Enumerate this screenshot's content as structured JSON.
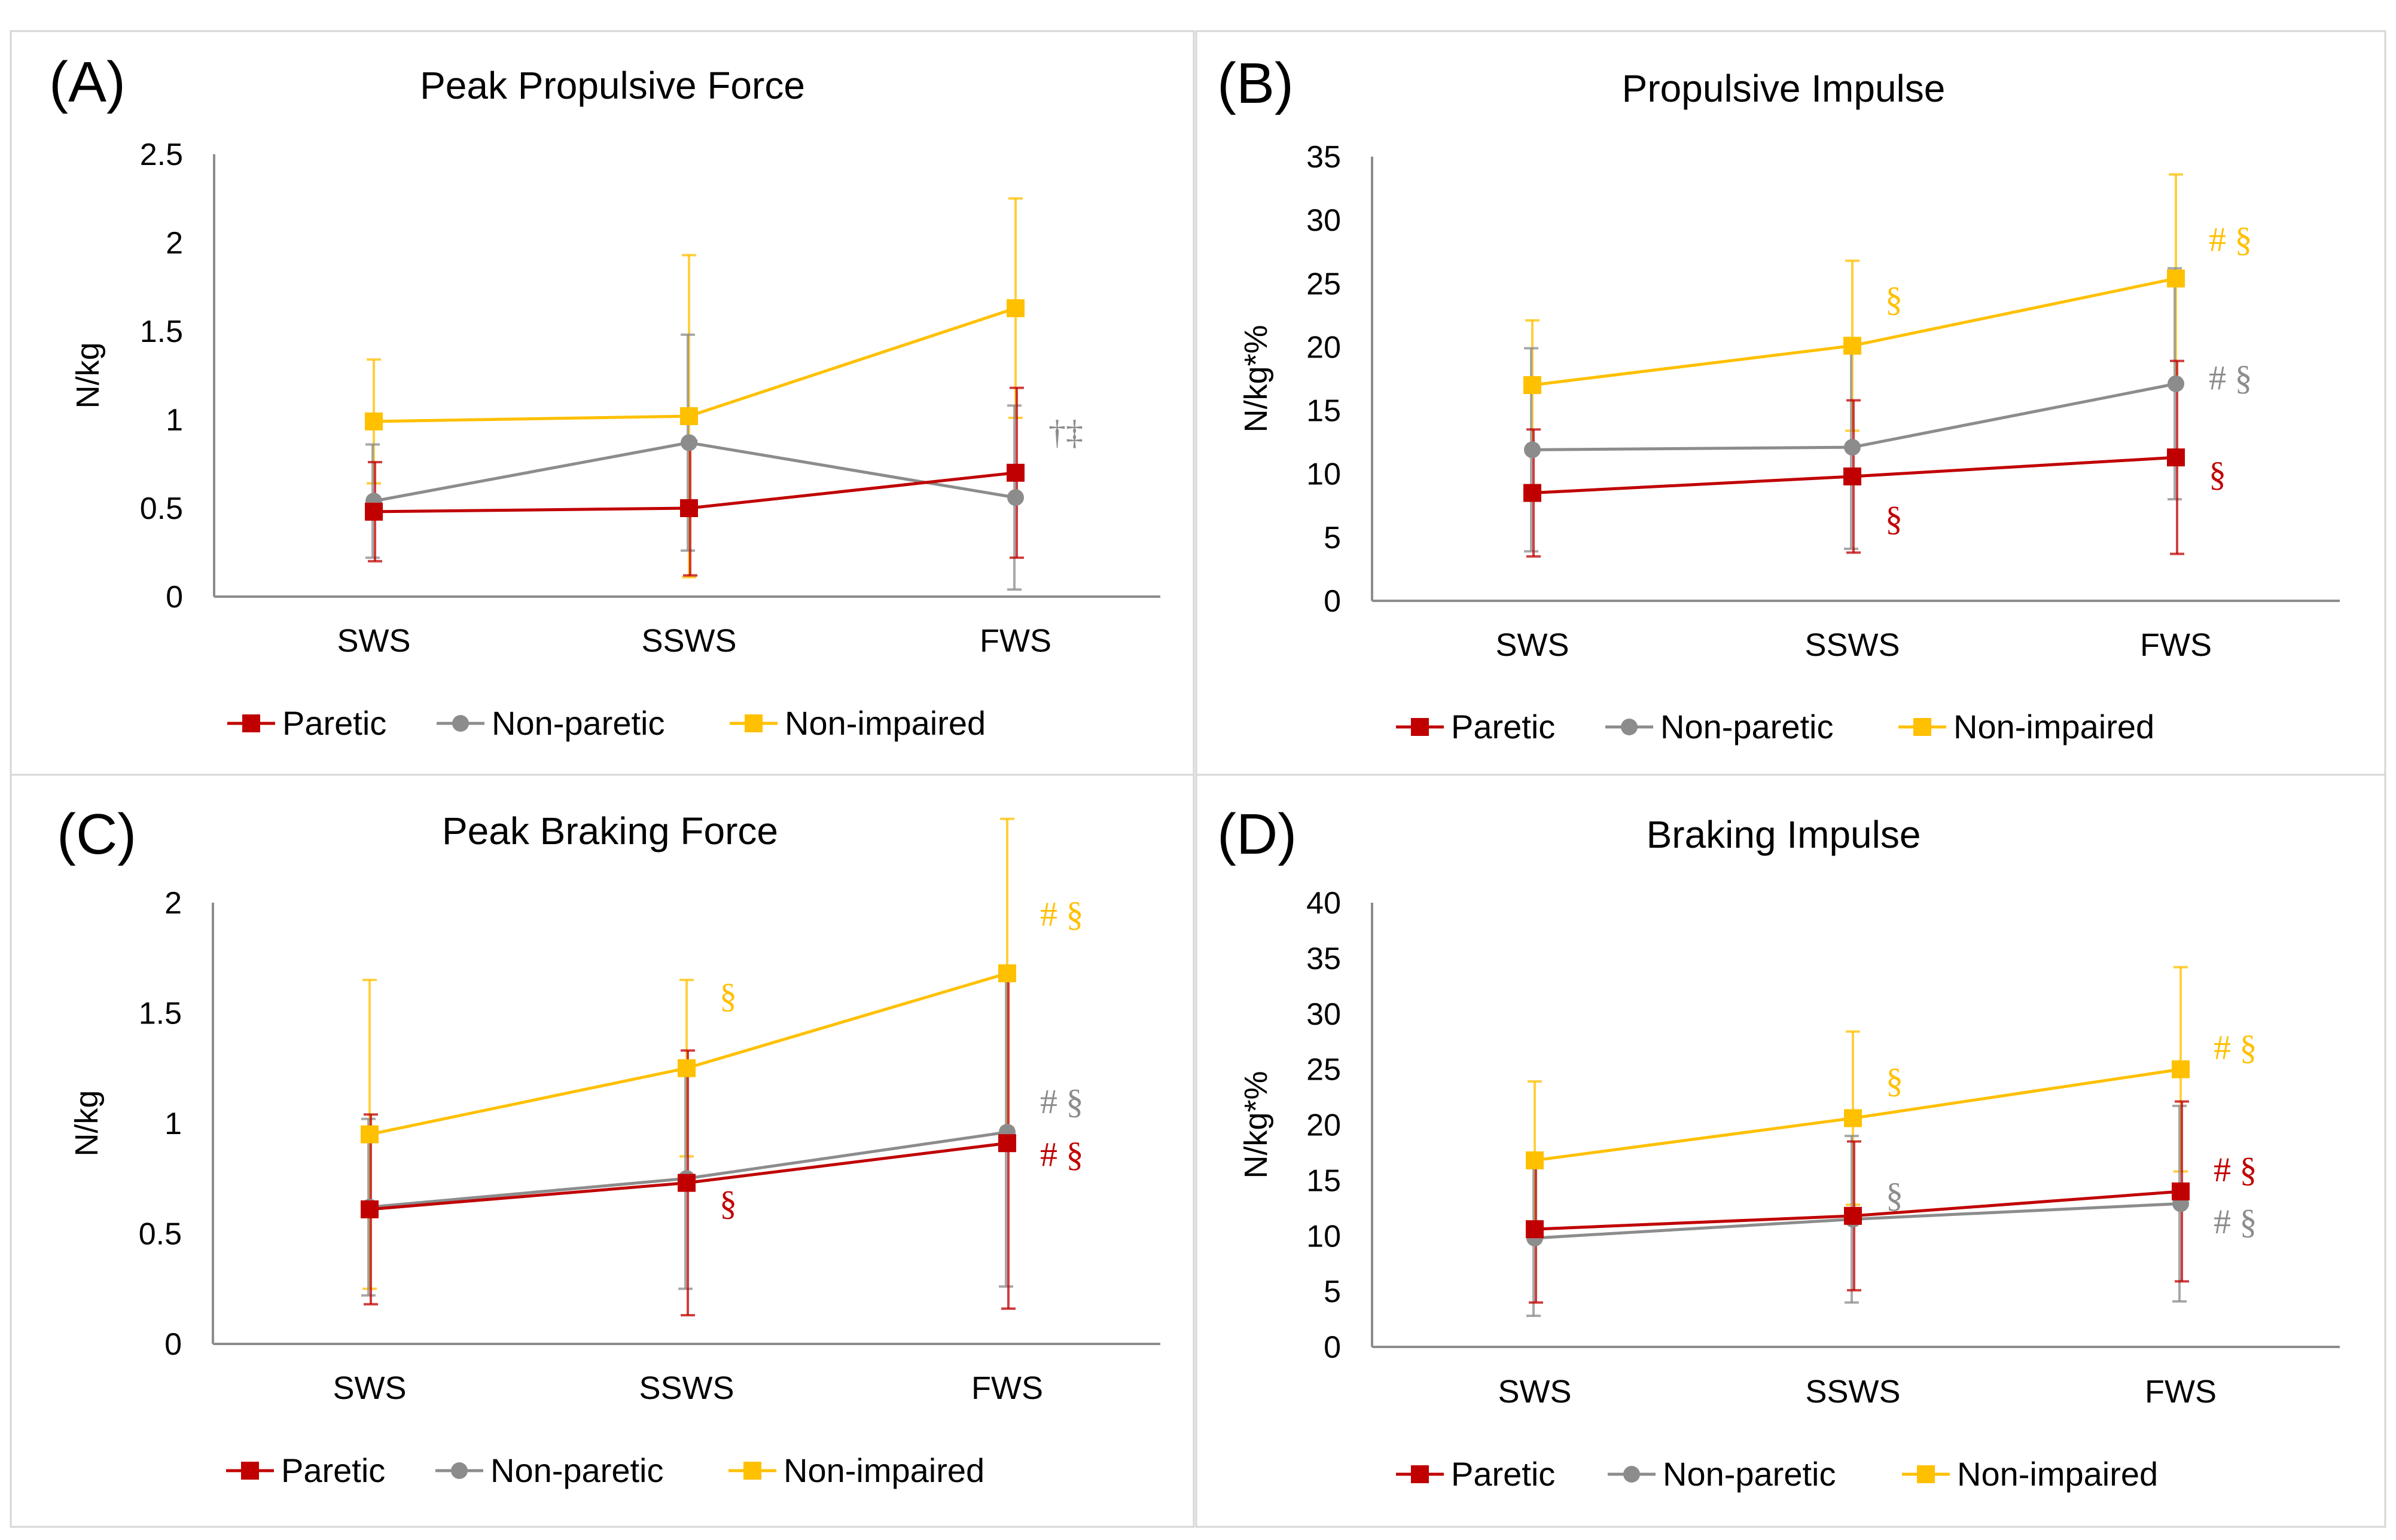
{
  "colors": {
    "paretic": "#c00000",
    "non_paretic": "#8c8c8c",
    "non_impaired": "#ffc000"
  },
  "legend": [
    {
      "name": "Paretic",
      "marker": "square",
      "color": "#c00000"
    },
    {
      "name": "Non-paretic",
      "marker": "circle",
      "color": "#8c8c8c"
    },
    {
      "name": "Non-impaired",
      "marker": "square",
      "color": "#ffc000"
    }
  ],
  "chart_data": [
    {
      "panel": "(A)",
      "type": "line",
      "title": "Peak Propulsive Force",
      "xlabel": "",
      "ylabel": "N/kg",
      "categories": [
        "SWS",
        "SSWS",
        "FWS"
      ],
      "ylim": [
        0,
        2.5
      ],
      "yticks": [
        "0",
        "0.5",
        "1",
        "1.5",
        "2",
        "2.5"
      ],
      "ytick_values": [
        0,
        0.5,
        1,
        1.5,
        2,
        2.5
      ],
      "series": [
        {
          "name": "Paretic",
          "values": [
            0.48,
            0.5,
            0.7
          ],
          "err": [
            0.28,
            0.38,
            0.48
          ]
        },
        {
          "name": "Non-paretic",
          "values": [
            0.54,
            0.87,
            0.56
          ],
          "err": [
            0.32,
            0.61,
            0.52
          ]
        },
        {
          "name": "Non-impaired",
          "values": [
            0.99,
            1.02,
            1.63
          ],
          "err": [
            0.35,
            0.91,
            0.62
          ]
        }
      ],
      "annotations": [
        {
          "text": "†‡",
          "category": "FWS",
          "y": 0.93,
          "series": "Non-paretic"
        }
      ]
    },
    {
      "panel": "(B)",
      "type": "line",
      "title": "Propulsive Impulse",
      "xlabel": "",
      "ylabel": "N/kg*%",
      "categories": [
        "SWS",
        "SSWS",
        "FWS"
      ],
      "ylim": [
        0,
        35
      ],
      "yticks": [
        "0",
        "5",
        "10",
        "15",
        "20",
        "25",
        "30",
        "35"
      ],
      "ytick_values": [
        0,
        5,
        10,
        15,
        20,
        25,
        30,
        35
      ],
      "series": [
        {
          "name": "Paretic",
          "values": [
            8.5,
            9.8,
            11.3
          ],
          "err": [
            5.0,
            6.0,
            7.6
          ]
        },
        {
          "name": "Non-paretic",
          "values": [
            11.9,
            12.1,
            17.1
          ],
          "err": [
            8.0,
            8.0,
            9.1
          ]
        },
        {
          "name": "Non-impaired",
          "values": [
            17.0,
            20.1,
            25.4
          ],
          "err": [
            5.1,
            6.7,
            8.2
          ]
        }
      ],
      "annotations": [
        {
          "text": "§",
          "category": "SSWS",
          "y": 23.8,
          "series": "Non-impaired"
        },
        {
          "text": "# §",
          "category": "FWS",
          "y": 28.5,
          "series": "Non-impaired"
        },
        {
          "text": "# §",
          "category": "FWS",
          "y": 17.6,
          "series": "Non-paretic"
        },
        {
          "text": "§",
          "category": "SSWS",
          "y": 6.5,
          "series": "Paretic"
        },
        {
          "text": "§",
          "category": "FWS",
          "y": 10.0,
          "series": "Paretic"
        }
      ]
    },
    {
      "panel": "(C)",
      "type": "line",
      "title": "Peak Braking Force",
      "xlabel": "",
      "ylabel": "N/kg",
      "categories": [
        "SWS",
        "SSWS",
        "FWS"
      ],
      "ylim": [
        0,
        2
      ],
      "yticks": [
        "0",
        "0.5",
        "1",
        "1.5",
        "2"
      ],
      "ytick_values": [
        0,
        0.5,
        1,
        1.5,
        2
      ],
      "series": [
        {
          "name": "Paretic",
          "values": [
            0.61,
            0.73,
            0.91
          ],
          "err": [
            0.43,
            0.6,
            0.75
          ]
        },
        {
          "name": "Non-paretic",
          "values": [
            0.62,
            0.75,
            0.96
          ],
          "err": [
            0.4,
            0.5,
            0.7
          ]
        },
        {
          "name": "Non-impaired",
          "values": [
            0.95,
            1.25,
            1.68
          ],
          "err": [
            0.7,
            0.4,
            0.7
          ]
        }
      ],
      "annotations": [
        {
          "text": "§",
          "category": "SSWS",
          "y": 1.58,
          "series": "Non-impaired"
        },
        {
          "text": "# §",
          "category": "FWS",
          "y": 1.95,
          "series": "Non-impaired"
        },
        {
          "text": "# §",
          "category": "FWS",
          "y": 1.1,
          "series": "Non-paretic"
        },
        {
          "text": "# §",
          "category": "FWS",
          "y": 0.86,
          "series": "Paretic"
        },
        {
          "text": "§",
          "category": "SSWS",
          "y": 0.64,
          "series": "Paretic"
        }
      ]
    },
    {
      "panel": "(D)",
      "type": "line",
      "title": "Braking Impulse",
      "xlabel": "",
      "ylabel": "N/kg*%",
      "categories": [
        "SWS",
        "SSWS",
        "FWS"
      ],
      "ylim": [
        0,
        40
      ],
      "yticks": [
        "0",
        "5",
        "10",
        "15",
        "20",
        "25",
        "30",
        "35",
        "40"
      ],
      "ytick_values": [
        0,
        5,
        10,
        15,
        20,
        25,
        30,
        35,
        40
      ],
      "series": [
        {
          "name": "Paretic",
          "values": [
            10.6,
            11.8,
            14.0
          ],
          "err": [
            6.6,
            6.7,
            8.1
          ]
        },
        {
          "name": "Non-paretic",
          "values": [
            9.8,
            11.5,
            12.9
          ],
          "err": [
            7.0,
            7.5,
            8.8
          ]
        },
        {
          "name": "Non-impaired",
          "values": [
            16.8,
            20.6,
            25.0
          ],
          "err": [
            7.1,
            7.8,
            9.2
          ]
        }
      ],
      "annotations": [
        {
          "text": "§",
          "category": "SSWS",
          "y": 24.0,
          "series": "Non-impaired"
        },
        {
          "text": "# §",
          "category": "FWS",
          "y": 27.0,
          "series": "Non-impaired"
        },
        {
          "text": "# §",
          "category": "FWS",
          "y": 16.0,
          "series": "Paretic"
        },
        {
          "text": "§",
          "category": "SSWS",
          "y": 13.7,
          "series": "Non-paretic"
        },
        {
          "text": "# §",
          "category": "FWS",
          "y": 11.3,
          "series": "Non-paretic"
        }
      ]
    }
  ]
}
